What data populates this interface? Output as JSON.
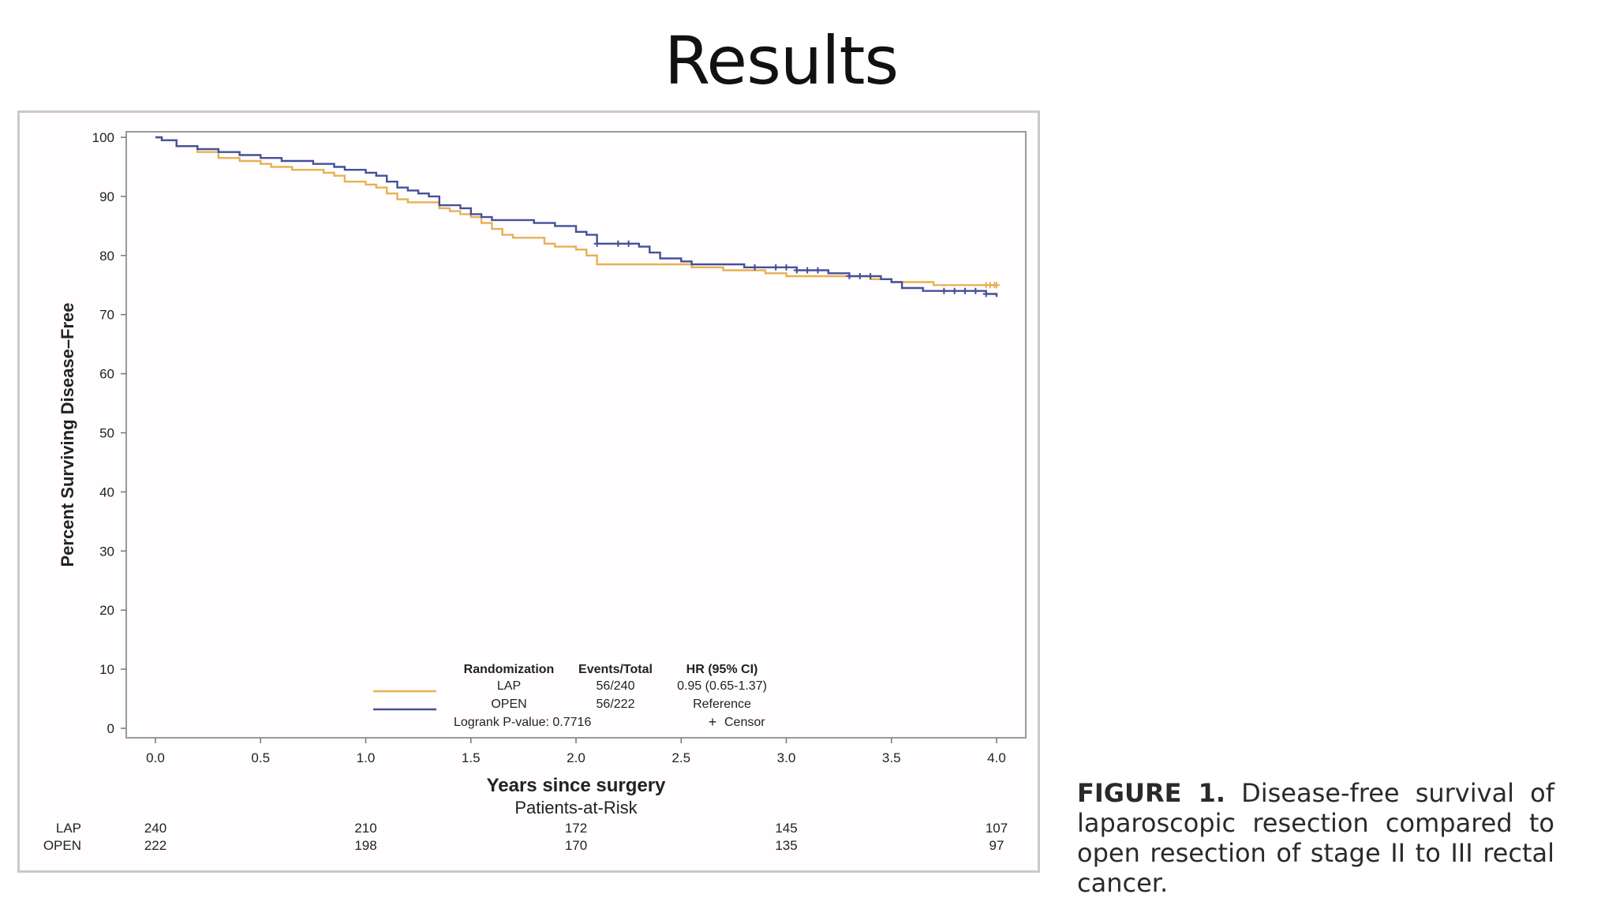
{
  "slide": {
    "title": "Results"
  },
  "caption": {
    "label": "FIGURE 1.",
    "text": "Disease-free survival of laparoscopic resection compared to open resection of stage II to III rectal cancer."
  },
  "chart_data": {
    "type": "line",
    "step": true,
    "title": "",
    "xlabel": "Years since surgery",
    "ylabel": "Percent Surviving Disease–Free",
    "xlim": [
      0,
      4
    ],
    "ylim": [
      0,
      100
    ],
    "x_ticks": [
      "0.0",
      "0.5",
      "1.0",
      "1.5",
      "2.0",
      "2.5",
      "3.0",
      "3.5",
      "4.0"
    ],
    "y_ticks": [
      "0",
      "10",
      "20",
      "30",
      "40",
      "50",
      "60",
      "70",
      "80",
      "90",
      "100"
    ],
    "grid": false,
    "legend": {
      "placement": "bottom-center",
      "headers": [
        "Randomization",
        "Events/Total",
        "HR (95% CI)"
      ],
      "rows": [
        {
          "name": "LAP",
          "events_total": "56/240",
          "hr": "0.95 (0.65-1.37)"
        },
        {
          "name": "OPEN",
          "events_total": "56/222",
          "hr": "Reference"
        }
      ],
      "pvalue_text": "Logrank P-value: 0.7716",
      "censor_symbol": "+",
      "censor_label": "Censor"
    },
    "series": [
      {
        "name": "LAP",
        "color": "#e8b054",
        "points": [
          [
            0,
            100
          ],
          [
            0.03,
            99.5
          ],
          [
            0.1,
            98.5
          ],
          [
            0.2,
            97.5
          ],
          [
            0.3,
            96.5
          ],
          [
            0.4,
            96
          ],
          [
            0.5,
            95.5
          ],
          [
            0.55,
            95
          ],
          [
            0.65,
            94.5
          ],
          [
            0.75,
            94.5
          ],
          [
            0.8,
            94
          ],
          [
            0.85,
            93.5
          ],
          [
            0.9,
            92.5
          ],
          [
            1.0,
            92
          ],
          [
            1.05,
            91.5
          ],
          [
            1.1,
            90.5
          ],
          [
            1.15,
            89.5
          ],
          [
            1.2,
            89
          ],
          [
            1.3,
            89
          ],
          [
            1.35,
            88
          ],
          [
            1.4,
            87.5
          ],
          [
            1.45,
            87
          ],
          [
            1.5,
            86.5
          ],
          [
            1.55,
            85.5
          ],
          [
            1.6,
            84.5
          ],
          [
            1.65,
            83.5
          ],
          [
            1.7,
            83
          ],
          [
            1.8,
            83
          ],
          [
            1.85,
            82
          ],
          [
            1.9,
            81.5
          ],
          [
            2.0,
            81
          ],
          [
            2.05,
            80
          ],
          [
            2.1,
            78.5
          ],
          [
            2.2,
            78.5
          ],
          [
            2.5,
            78.5
          ],
          [
            2.55,
            78
          ],
          [
            2.7,
            77.5
          ],
          [
            2.9,
            77
          ],
          [
            3.0,
            76.5
          ],
          [
            3.2,
            76.5
          ],
          [
            3.4,
            76
          ],
          [
            3.5,
            75.5
          ],
          [
            3.6,
            75.5
          ],
          [
            3.7,
            75
          ],
          [
            4.0,
            75
          ]
        ],
        "censor_x": [
          3.95,
          3.97,
          3.99,
          4.0
        ]
      },
      {
        "name": "OPEN",
        "color": "#44509a",
        "points": [
          [
            0,
            100
          ],
          [
            0.03,
            99.5
          ],
          [
            0.1,
            98.5
          ],
          [
            0.2,
            98
          ],
          [
            0.3,
            97.5
          ],
          [
            0.4,
            97
          ],
          [
            0.5,
            96.5
          ],
          [
            0.6,
            96
          ],
          [
            0.75,
            95.5
          ],
          [
            0.85,
            95
          ],
          [
            0.9,
            94.5
          ],
          [
            1.0,
            94
          ],
          [
            1.05,
            93.5
          ],
          [
            1.1,
            92.5
          ],
          [
            1.15,
            91.5
          ],
          [
            1.2,
            91
          ],
          [
            1.25,
            90.5
          ],
          [
            1.3,
            90
          ],
          [
            1.35,
            88.5
          ],
          [
            1.45,
            88
          ],
          [
            1.5,
            87
          ],
          [
            1.55,
            86.5
          ],
          [
            1.6,
            86
          ],
          [
            1.8,
            85.5
          ],
          [
            1.9,
            85
          ],
          [
            2.0,
            84
          ],
          [
            2.05,
            83.5
          ],
          [
            2.1,
            82
          ],
          [
            2.3,
            81.5
          ],
          [
            2.35,
            80.5
          ],
          [
            2.4,
            79.5
          ],
          [
            2.5,
            79
          ],
          [
            2.55,
            78.5
          ],
          [
            2.8,
            78
          ],
          [
            3.0,
            78
          ],
          [
            3.05,
            77.5
          ],
          [
            3.2,
            77
          ],
          [
            3.3,
            76.5
          ],
          [
            3.45,
            76
          ],
          [
            3.5,
            75.5
          ],
          [
            3.55,
            74.5
          ],
          [
            3.65,
            74
          ],
          [
            3.9,
            74
          ],
          [
            3.95,
            73.5
          ],
          [
            4.0,
            73
          ]
        ],
        "censor_x": [
          2.1,
          2.2,
          2.25,
          2.85,
          2.95,
          3.0,
          3.05,
          3.1,
          3.15,
          3.3,
          3.35,
          3.4,
          3.75,
          3.8,
          3.85,
          3.9,
          3.95
        ]
      }
    ],
    "risk_table": {
      "title": "Patients-at-Risk",
      "x": [
        0,
        1,
        2,
        3,
        4
      ],
      "rows": [
        {
          "name": "LAP",
          "values": [
            "240",
            "210",
            "172",
            "145",
            "107"
          ]
        },
        {
          "name": "OPEN",
          "values": [
            "222",
            "198",
            "170",
            "135",
            "97"
          ]
        }
      ]
    }
  }
}
